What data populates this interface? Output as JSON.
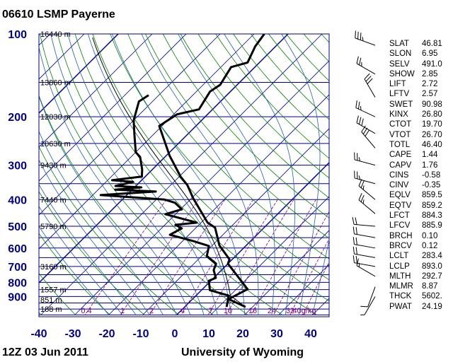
{
  "title": "06610 LSMP Payerne",
  "footer_left": "12Z 03 Jun 2011",
  "footer_right": "University of Wyoming",
  "colors": {
    "axis": "#000080",
    "isobar": "#000080",
    "isotherm": "#0000a0",
    "dry_adiabat": "#008000",
    "moist_adiabat": "#2060a0",
    "mixing_ratio": "#800080",
    "sounding": "#000000"
  },
  "chart_data": {
    "type": "skew-t",
    "pressure_labels": [
      "100",
      "200",
      "300",
      "400",
      "500",
      "600",
      "700",
      "800",
      "900"
    ],
    "pressure_values": [
      100,
      200,
      300,
      400,
      500,
      600,
      700,
      800,
      900
    ],
    "temp_labels": [
      "-40",
      "-30",
      "-20",
      "-10",
      "0",
      "10",
      "20",
      "30",
      "40"
    ],
    "temp_values": [
      -40,
      -30,
      -20,
      -10,
      0,
      10,
      20,
      30,
      40
    ],
    "xlim": [
      -40,
      45
    ],
    "plim": [
      100,
      1050
    ],
    "heights": [
      {
        "p": 100,
        "label": "16440 m"
      },
      {
        "p": 150,
        "label": "13860 m"
      },
      {
        "p": 200,
        "label": "12030 m"
      },
      {
        "p": 250,
        "label": "10630 m"
      },
      {
        "p": 300,
        "label": "9430 m"
      },
      {
        "p": 400,
        "label": "7440 m"
      },
      {
        "p": 500,
        "label": "5790 m"
      },
      {
        "p": 700,
        "label": "3160 m"
      },
      {
        "p": 850,
        "label": "1557 m"
      },
      {
        "p": 925,
        "label": "851 m"
      },
      {
        "p": 1000,
        "label": "188 m"
      }
    ],
    "mixing_ratio_labels": [
      "0.4",
      "1",
      "2",
      "4",
      "7",
      "10",
      "16",
      "24",
      "32",
      "40g/kg"
    ],
    "mixing_ratio_values": [
      0.4,
      1,
      2,
      4,
      7,
      10,
      16,
      24,
      32,
      40
    ],
    "temperature": [
      [
        982,
        17.9
      ],
      [
        920,
        10.6
      ],
      [
        847,
        13.3
      ],
      [
        684,
        0
      ],
      [
        660,
        -0.8
      ],
      [
        587,
        -7.9
      ],
      [
        506,
        -14.4
      ],
      [
        485,
        -18.1
      ],
      [
        395,
        -29.6
      ],
      [
        355,
        -35
      ],
      [
        330,
        -39.6
      ],
      [
        277,
        -49
      ],
      [
        239,
        -56
      ],
      [
        216,
        -60.8
      ],
      [
        196,
        -59
      ],
      [
        188,
        -54
      ],
      [
        162,
        -56
      ],
      [
        153,
        -55
      ],
      [
        132,
        -57
      ],
      [
        127,
        -53.5
      ],
      [
        111,
        -56
      ],
      [
        100,
        -57
      ]
    ],
    "dewpoint": [
      [
        982,
        12.3
      ],
      [
        970,
        12
      ],
      [
        893,
        9.6
      ],
      [
        854,
        2.5
      ],
      [
        789,
        -0.6
      ],
      [
        770,
        0.6
      ],
      [
        722,
        -2.3
      ],
      [
        684,
        -3.5
      ],
      [
        641,
        -8.5
      ],
      [
        590,
        -10.8
      ],
      [
        566,
        -16.9
      ],
      [
        537,
        -25.6
      ],
      [
        509,
        -24
      ],
      [
        494,
        -26.9
      ],
      [
        485,
        -21.3
      ],
      [
        452,
        -33
      ],
      [
        434,
        -29.6
      ],
      [
        411,
        -33.5
      ],
      [
        400,
        -37.5
      ],
      [
        385,
        -57.7
      ],
      [
        374,
        -42.5
      ],
      [
        368,
        -55
      ],
      [
        361,
        -48
      ],
      [
        357,
        -56
      ],
      [
        345,
        -52
      ],
      [
        340,
        -58.7
      ],
      [
        330,
        -51
      ],
      [
        311,
        -53
      ],
      [
        280,
        -57.3
      ],
      [
        269,
        -60
      ],
      [
        232,
        -65.6
      ],
      [
        206,
        -70
      ],
      [
        176,
        -74
      ],
      [
        167,
        -73
      ]
    ],
    "wind_barbs": [
      [
        110,
        290,
        35
      ],
      [
        140,
        300,
        25
      ],
      [
        170,
        330,
        30
      ],
      [
        200,
        295,
        25
      ],
      [
        230,
        300,
        30
      ],
      [
        260,
        320,
        30
      ],
      [
        300,
        285,
        25
      ],
      [
        350,
        285,
        25
      ],
      [
        400,
        310,
        25
      ],
      [
        450,
        310,
        25
      ],
      [
        500,
        275,
        20
      ],
      [
        550,
        280,
        20
      ],
      [
        600,
        280,
        20
      ],
      [
        650,
        280,
        20
      ],
      [
        700,
        280,
        20
      ],
      [
        760,
        300,
        15
      ],
      [
        830,
        200,
        10
      ],
      [
        900,
        210,
        5
      ]
    ]
  },
  "stats": [
    {
      "k": "SLAT",
      "v": "46.81"
    },
    {
      "k": "SLON",
      "v": "6.95"
    },
    {
      "k": "SELV",
      "v": "491.0"
    },
    {
      "k": "SHOW",
      "v": "2.85"
    },
    {
      "k": "LIFT",
      "v": "2.72"
    },
    {
      "k": "LFTV",
      "v": "2.57"
    },
    {
      "k": "SWET",
      "v": "90.98"
    },
    {
      "k": "KINX",
      "v": "26.80"
    },
    {
      "k": "CTOT",
      "v": "19.70"
    },
    {
      "k": "VTOT",
      "v": "26.70"
    },
    {
      "k": "TOTL",
      "v": "46.40"
    },
    {
      "k": "CAPE",
      "v": "1.44"
    },
    {
      "k": "CAPV",
      "v": "1.76"
    },
    {
      "k": "CINS",
      "v": "-0.58"
    },
    {
      "k": "CINV",
      "v": "-0.35"
    },
    {
      "k": "EQLV",
      "v": "859.5"
    },
    {
      "k": "EQTV",
      "v": "859.2"
    },
    {
      "k": "LFCT",
      "v": "884.3"
    },
    {
      "k": "LFCV",
      "v": "885.9"
    },
    {
      "k": "BRCH",
      "v": "0.10"
    },
    {
      "k": "BRCV",
      "v": "0.12"
    },
    {
      "k": "LCLT",
      "v": "283.4"
    },
    {
      "k": "LCLP",
      "v": "893.0"
    },
    {
      "k": "MLTH",
      "v": "292.7"
    },
    {
      "k": "MLMR",
      "v": "8.87"
    },
    {
      "k": "THCK",
      "v": "5602."
    },
    {
      "k": "PWAT",
      "v": "24.19"
    }
  ]
}
